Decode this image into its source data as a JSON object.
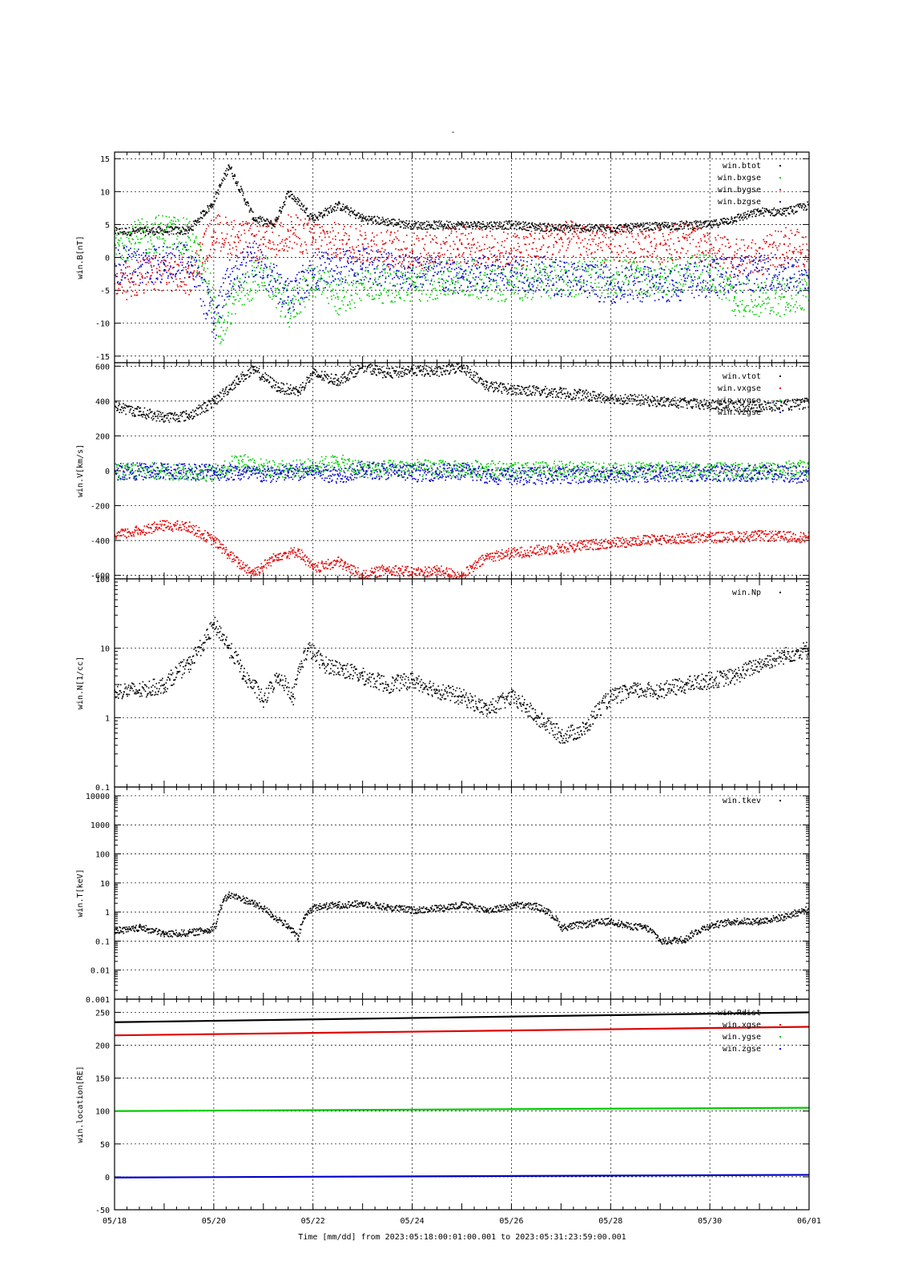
{
  "title": "-",
  "xlabel": "Time [mm/dd]  from 2023:05:18:00:01:00.001  to  2023:05:31:23:59:00.001",
  "x_ticks": [
    "05/18",
    "05/20",
    "05/22",
    "05/24",
    "05/26",
    "05/28",
    "05/30",
    "06/01"
  ],
  "colors": {
    "black": "#000000",
    "red": "#e00000",
    "green": "#00cc00",
    "blue": "#0000cc"
  },
  "chart_data": [
    {
      "type": "scatter",
      "ylabel": "win.B[nT]",
      "yscale": "linear",
      "ylim": [
        -16,
        16
      ],
      "y_ticks": [
        "15",
        "10",
        "5",
        "0",
        "-5",
        "-10",
        "-15"
      ],
      "y_tick_values": [
        15,
        10,
        5,
        0,
        -5,
        -10,
        -15
      ],
      "grid": true,
      "legend_position": "top-right",
      "series": [
        {
          "name": "win.btot",
          "color": "#000000",
          "x": [
            0,
            1.5,
            1.8,
            1.95,
            2.3,
            2.8,
            3.2,
            3.5,
            4,
            4.5,
            5,
            6,
            7,
            8,
            9,
            10,
            11,
            11.5,
            12,
            12.5,
            13,
            13.5,
            14
          ],
          "y": [
            4,
            4.2,
            7,
            8,
            14,
            6,
            5,
            10,
            6,
            8,
            6,
            5,
            5,
            5,
            4.5,
            4.5,
            4.8,
            5,
            5,
            6,
            7,
            7,
            8
          ]
        },
        {
          "name": "win.bxgse",
          "color": "#00cc00",
          "x": [
            0,
            1,
            1.5,
            1.9,
            2.1,
            2.4,
            3,
            3.5,
            4,
            4.5,
            5,
            6,
            7,
            8,
            9,
            10,
            11,
            12,
            12.5,
            13,
            13.5,
            14
          ],
          "y": [
            2,
            4,
            3,
            -4,
            -12,
            -6,
            -2,
            -8,
            -3,
            -6,
            -4,
            -4,
            -3,
            -4,
            -3,
            -3,
            -3,
            -2,
            -6,
            -6,
            -6,
            -5
          ]
        },
        {
          "name": "win.bygse",
          "color": "#e00000",
          "x": [
            0,
            1,
            1.5,
            2,
            2.5,
            3,
            3.5,
            4,
            5,
            6,
            7,
            8,
            9,
            10,
            11,
            11.5,
            12,
            12.5,
            13,
            13.5,
            14
          ],
          "y": [
            -4,
            -2,
            -3,
            4,
            3,
            2,
            4,
            3,
            2,
            1,
            2,
            1,
            3,
            2,
            2,
            3,
            1,
            0,
            0,
            2,
            1
          ]
        },
        {
          "name": "win.bzgse",
          "color": "#0000cc",
          "x": [
            0,
            1,
            1.5,
            2,
            2.3,
            2.8,
            3.5,
            4,
            5,
            6,
            7,
            8,
            9,
            10,
            11,
            12,
            13,
            14
          ],
          "y": [
            -1,
            -1,
            0,
            -10,
            -3,
            0,
            -6,
            -2,
            -1,
            -2,
            -3,
            -2,
            -3,
            -4,
            -4,
            -3,
            -2,
            -3
          ]
        }
      ]
    },
    {
      "type": "scatter",
      "ylabel": "win.V[km/s]",
      "yscale": "linear",
      "ylim": [
        -620,
        620
      ],
      "y_ticks": [
        "600",
        "400",
        "200",
        "0",
        "-200",
        "-400",
        "-600"
      ],
      "y_tick_values": [
        600,
        400,
        200,
        0,
        -200,
        -400,
        -600
      ],
      "grid": true,
      "legend_position": "top-right",
      "series": [
        {
          "name": "win.vtot",
          "color": "#000000",
          "x": [
            0,
            0.5,
            1,
            1.5,
            2,
            2.5,
            2.8,
            3.3,
            3.7,
            4,
            4.5,
            5,
            5.5,
            6,
            6.5,
            7,
            7.5,
            8,
            9,
            10,
            11,
            12,
            13,
            14
          ],
          "y": [
            370,
            340,
            310,
            320,
            400,
            530,
            580,
            480,
            460,
            560,
            520,
            600,
            560,
            580,
            570,
            600,
            490,
            470,
            450,
            420,
            400,
            380,
            370,
            390
          ]
        },
        {
          "name": "win.vxgse",
          "color": "#e00000",
          "x": [
            0,
            0.5,
            1,
            1.5,
            2,
            2.5,
            2.8,
            3.3,
            3.7,
            4,
            4.5,
            5,
            5.5,
            6,
            6.5,
            7,
            7.5,
            8,
            9,
            10,
            11,
            12,
            13,
            14
          ],
          "y": [
            -370,
            -340,
            -310,
            -320,
            -400,
            -530,
            -580,
            -480,
            -460,
            -560,
            -520,
            -600,
            -560,
            -580,
            -570,
            -600,
            -490,
            -470,
            -440,
            -410,
            -390,
            -380,
            -370,
            -380
          ]
        },
        {
          "name": "win.vygse",
          "color": "#00cc00",
          "x": [
            0,
            1,
            2,
            2.5,
            3,
            3.5,
            4,
            4.5,
            5,
            6,
            7,
            7.5,
            8,
            9,
            10,
            11,
            12,
            13,
            14
          ],
          "y": [
            0,
            0,
            -10,
            60,
            20,
            10,
            30,
            50,
            10,
            20,
            10,
            20,
            0,
            10,
            0,
            10,
            0,
            0,
            20
          ]
        },
        {
          "name": "win.vzgse",
          "color": "#0000cc",
          "x": [
            0,
            1,
            2,
            2.5,
            3,
            3.5,
            4,
            4.5,
            5,
            6,
            7,
            7.5,
            8,
            9,
            10,
            11,
            12,
            13,
            14
          ],
          "y": [
            0,
            0,
            0,
            -10,
            -20,
            -10,
            0,
            -20,
            10,
            -10,
            0,
            -20,
            -30,
            -20,
            -20,
            -10,
            -10,
            -10,
            -20
          ]
        }
      ]
    },
    {
      "type": "scatter",
      "ylabel": "win.N[1/cc]",
      "yscale": "log",
      "ylim": [
        0.1,
        100
      ],
      "y_ticks": [
        "100",
        "10",
        "1",
        "0.1"
      ],
      "y_tick_values": [
        100,
        10,
        1,
        0.1
      ],
      "grid": true,
      "legend_position": "top-right",
      "series": [
        {
          "name": "win.Np",
          "color": "#000000",
          "x": [
            0,
            0.5,
            1,
            1.5,
            1.8,
            2,
            2.3,
            2.6,
            3,
            3.3,
            3.6,
            3.9,
            4.2,
            4.6,
            5,
            5.5,
            6,
            6.5,
            7,
            7.5,
            8,
            8.5,
            9,
            9.5,
            10,
            10.5,
            11,
            11.5,
            12,
            12.5,
            13,
            13.5,
            14
          ],
          "y": [
            2.5,
            2.5,
            3,
            6,
            12,
            22,
            10,
            4,
            1.7,
            4,
            2,
            10,
            6,
            5,
            4,
            3,
            3.5,
            2.5,
            2,
            1.3,
            2,
            1,
            0.55,
            0.7,
            2,
            2.5,
            2.5,
            3,
            3.5,
            4,
            6,
            8,
            10
          ]
        }
      ]
    },
    {
      "type": "scatter",
      "ylabel": "win.T[keV]",
      "yscale": "log",
      "ylim": [
        0.001,
        20000
      ],
      "y_ticks": [
        "10000",
        "1000",
        "100",
        "10",
        "1",
        "0.1",
        "0.01",
        "0.001"
      ],
      "y_tick_values": [
        10000,
        1000,
        100,
        10,
        1,
        0.1,
        0.01,
        0.001
      ],
      "grid": true,
      "legend_position": "top-right",
      "series": [
        {
          "name": "win.tkev",
          "color": "#000000",
          "x": [
            0,
            0.3,
            0.5,
            1,
            1.5,
            1.9,
            2.05,
            2.3,
            2.8,
            3.2,
            3.5,
            3.7,
            4,
            4.5,
            5,
            5.5,
            6,
            6.5,
            7,
            7.5,
            7.9,
            8.1,
            8.5,
            9,
            9.5,
            10,
            10.3,
            10.7,
            11,
            11.5,
            12,
            12.5,
            13,
            13.5,
            14
          ],
          "y": [
            0.25,
            0.25,
            0.3,
            0.18,
            0.2,
            0.25,
            0.4,
            4,
            2,
            0.7,
            0.3,
            0.12,
            1.5,
            1.8,
            2,
            1.5,
            1.2,
            1.4,
            1.8,
            1.2,
            1.5,
            1.8,
            1.6,
            0.3,
            0.4,
            0.5,
            0.35,
            0.3,
            0.1,
            0.12,
            0.35,
            0.5,
            0.5,
            0.7,
            1.3
          ]
        }
      ]
    },
    {
      "type": "line",
      "ylabel": "win.location[RE]",
      "yscale": "linear",
      "ylim": [
        -50,
        270
      ],
      "y_ticks": [
        "250",
        "200",
        "150",
        "100",
        "50",
        "0",
        "-50"
      ],
      "y_tick_values": [
        250,
        200,
        150,
        100,
        50,
        0,
        -50
      ],
      "grid": true,
      "legend_position": "top-right",
      "series": [
        {
          "name": "win.Rdist",
          "color": "#000000",
          "x": [
            0,
            14
          ],
          "y": [
            235,
            250
          ]
        },
        {
          "name": "win.xgse",
          "color": "#e00000",
          "x": [
            0,
            14
          ],
          "y": [
            215,
            228
          ]
        },
        {
          "name": "win.ygse",
          "color": "#00cc00",
          "x": [
            0,
            14
          ],
          "y": [
            100,
            105
          ]
        },
        {
          "name": "win.zgse",
          "color": "#0000cc",
          "x": [
            0,
            14
          ],
          "y": [
            -1,
            3
          ]
        }
      ]
    }
  ]
}
